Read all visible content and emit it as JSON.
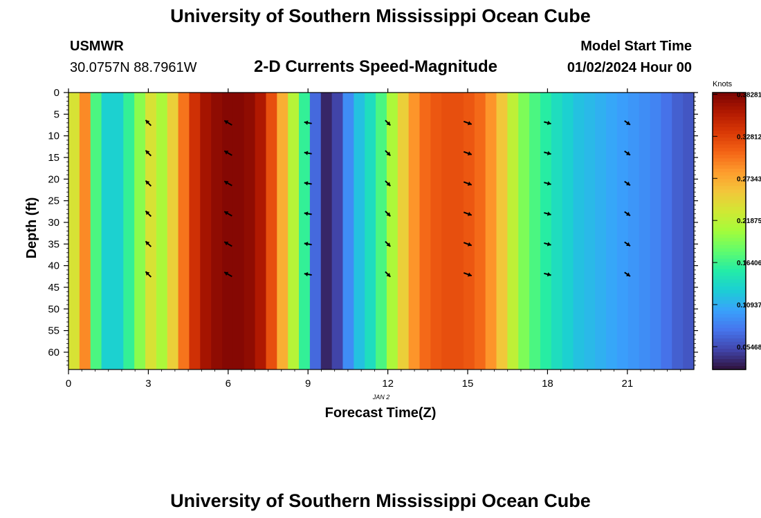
{
  "header": {
    "title": "University of Southern Mississippi Ocean Cube",
    "station": "USMWR",
    "coords": "30.0757N  88.7961W",
    "product": "2-D Currents Speed-Magnitude",
    "model_start_label": "Model Start Time",
    "model_start_value": "01/02/2024 Hour 00"
  },
  "footer": {
    "title": "University of Southern Mississippi Ocean Cube"
  },
  "chart_data": {
    "type": "heatmap",
    "title": "2-D Currents Speed-Magnitude",
    "xlabel": "Forecast Time(Z)",
    "ylabel": "Depth (ft)",
    "date_label": "JAN 2",
    "xlim": [
      0,
      23.5
    ],
    "ylim": [
      0,
      64
    ],
    "x_ticks": [
      0,
      3,
      6,
      9,
      12,
      15,
      18,
      21
    ],
    "y_ticks": [
      0,
      5,
      10,
      15,
      20,
      25,
      30,
      35,
      40,
      45,
      50,
      55,
      60
    ],
    "colorbar": {
      "label": "Knots",
      "min": 0.025,
      "max": 0.385,
      "tick_values": [
        0.38281,
        0.32812,
        0.27343,
        0.21875,
        0.16406,
        0.10937,
        0.05468
      ],
      "tick_labels": [
        "0.38281",
        "0.32812",
        "0.27343",
        "0.21875",
        "0.16406",
        "0.10937",
        "0.05468"
      ],
      "colormap": [
        "#30123b",
        "#4145ab",
        "#4675ed",
        "#39a2fc",
        "#1bcfd4",
        "#24eca6",
        "#61fc6c",
        "#a4fc3b",
        "#d1e834",
        "#f3c63a",
        "#fe9b2d",
        "#f36315",
        "#d93806",
        "#b11901",
        "#7a0403"
      ]
    },
    "column_values": [
      0.235,
      0.29,
      0.17,
      0.13,
      0.13,
      0.16,
      0.195,
      0.235,
      0.21,
      0.25,
      0.3,
      0.34,
      0.365,
      0.375,
      0.38,
      0.38,
      0.375,
      0.36,
      0.32,
      0.27,
      0.215,
      0.16,
      0.07,
      0.035,
      0.05,
      0.09,
      0.12,
      0.14,
      0.17,
      0.21,
      0.25,
      0.285,
      0.305,
      0.315,
      0.32,
      0.32,
      0.315,
      0.305,
      0.285,
      0.255,
      0.22,
      0.19,
      0.17,
      0.155,
      0.14,
      0.13,
      0.12,
      0.115,
      0.11,
      0.105,
      0.1,
      0.095,
      0.09,
      0.085,
      0.075,
      0.065,
      0.06
    ],
    "vectors": {
      "times": [
        3,
        6,
        9,
        12,
        15,
        18,
        21
      ],
      "depths": [
        7,
        14,
        21,
        28,
        35,
        42
      ],
      "directions_deg": [
        -45,
        -60,
        -80,
        135,
        110,
        105,
        125
      ],
      "speeds": [
        0.21,
        0.38,
        0.2,
        0.14,
        0.32,
        0.15,
        0.1
      ]
    }
  }
}
